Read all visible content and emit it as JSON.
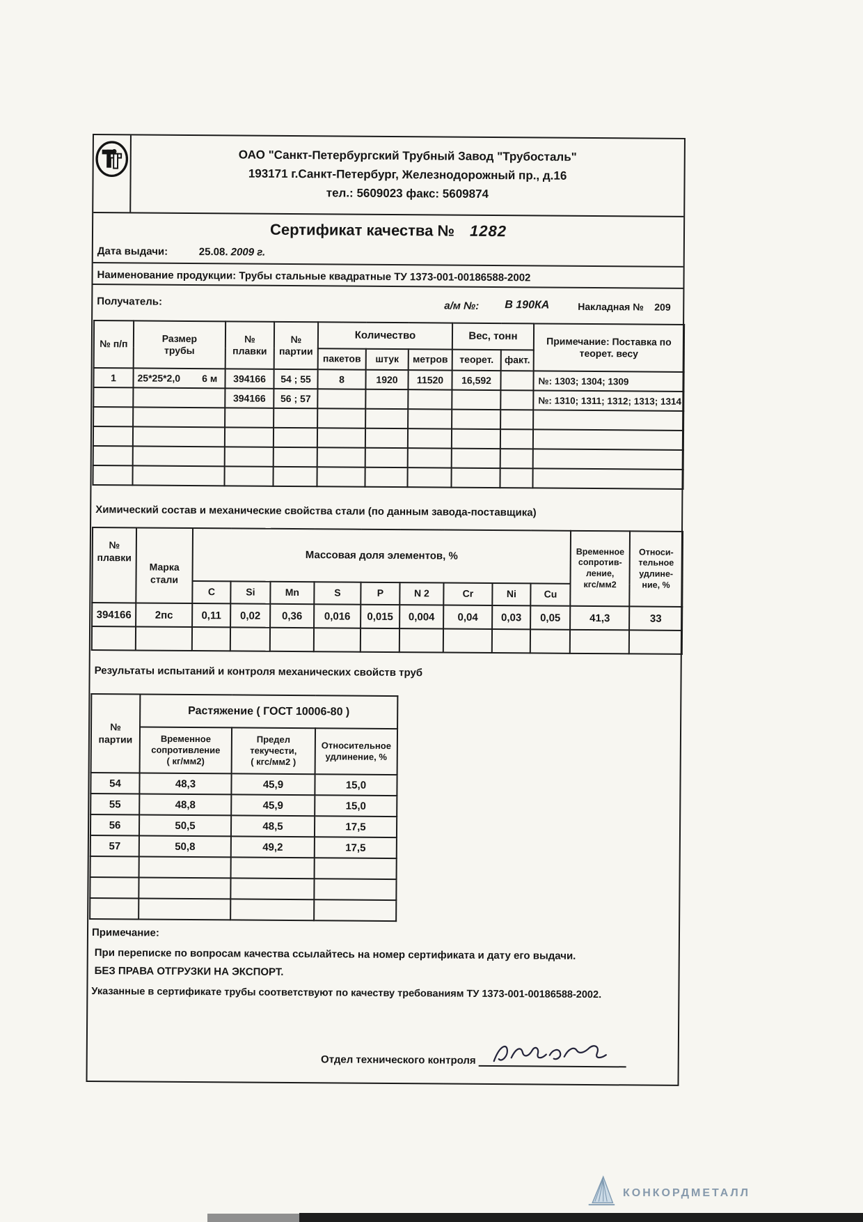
{
  "company": {
    "line1": "ОАО \"Санкт-Петербургский Трубный Завод \"Трубосталь\"",
    "line2": "193171  г.Санкт-Петербург, Железнодорожный пр., д.16",
    "line3": "тел.: 5609023   факс: 5609874"
  },
  "certificate": {
    "title_label": "Сертификат качества №",
    "number": "1282",
    "issue_label": "Дата выдачи:",
    "issue_date": "25.08.",
    "issue_year": "2009 г.",
    "product_line": "Наименование продукции: Трубы стальные квадратные ТУ 1373-001-00186588-2002",
    "recipient_label": "Получатель:",
    "vehicle_label": "а/м №:",
    "vehicle_value": "В 190КА",
    "invoice_label": "Накладная №",
    "invoice_value": "209"
  },
  "shipment_table": {
    "col_num": "№ п/п",
    "col_size": "Размер\nтрубы",
    "col_heat": "№\nплавки",
    "col_batch": "№\nпартии",
    "col_qty": "Количество",
    "col_packs": "пакетов",
    "col_pieces": "штук",
    "col_meters": "метров",
    "col_weight": "Вес, тонн",
    "col_theor": "теорет.",
    "col_fact": "факт.",
    "col_note": "Примечание: Поставка по\nтеорет. весу",
    "rows": [
      [
        "1",
        "25*25*2,0        6 м",
        "394166",
        "54 ; 55",
        "8",
        "1920",
        "11520",
        "16,592",
        "",
        "№: 1303; 1304; 1309"
      ],
      [
        "",
        "",
        "394166",
        "56 ; 57",
        "",
        "",
        "",
        "",
        "",
        "№: 1310; 1311; 1312; 1313; 1314"
      ],
      [
        "",
        "",
        "",
        "",
        "",
        "",
        "",
        "",
        "",
        ""
      ],
      [
        "",
        "",
        "",
        "",
        "",
        "",
        "",
        "",
        "",
        ""
      ],
      [
        "",
        "",
        "",
        "",
        "",
        "",
        "",
        "",
        "",
        ""
      ],
      [
        "",
        "",
        "",
        "",
        "",
        "",
        "",
        "",
        "",
        ""
      ]
    ]
  },
  "chemical_section": {
    "title": "Химический состав и механические свойства стали (по данным завода-поставщика)"
  },
  "chemical_table": {
    "col_heat": "№\nплавки",
    "col_grade": "Марка стали",
    "col_mass": "Массовая доля элементов, %",
    "elements": [
      "C",
      "Si",
      "Mn",
      "S",
      "P",
      "N 2",
      "Cr",
      "Ni",
      "Cu"
    ],
    "col_strength": "Временное\nсопротив-\nление,\nкгс/мм2",
    "col_elong": "Относи-\nтельное\nудлине-\nние, %",
    "rows": [
      [
        "394166",
        "2пс",
        "0,11",
        "0,02",
        "0,36",
        "0,016",
        "0,015",
        "0,004",
        "0,04",
        "0,03",
        "0,05",
        "41,3",
        "33"
      ],
      [
        "",
        "",
        "",
        "",
        "",
        "",
        "",
        "",
        "",
        "",
        "",
        "",
        ""
      ]
    ]
  },
  "test_section": {
    "title": "Результаты испытаний  и контроля механических свойств труб"
  },
  "test_table": {
    "col_batch": "№\nпартии",
    "col_group": "Растяжение   ( ГОСТ 10006-80 )",
    "col_strength": "Временное\nсопротивление\n( кг/мм2)",
    "col_yield": "Предел текучести,\n( кгс/мм2 )",
    "col_elong": "Относительное\nудлинение, %",
    "rows": [
      [
        "54",
        "48,3",
        "45,9",
        "15,0"
      ],
      [
        "55",
        "48,8",
        "45,9",
        "15,0"
      ],
      [
        "56",
        "50,5",
        "48,5",
        "17,5"
      ],
      [
        "57",
        "50,8",
        "49,2",
        "17,5"
      ],
      [
        "",
        "",
        "",
        ""
      ],
      [
        "",
        "",
        "",
        ""
      ],
      [
        "",
        "",
        "",
        ""
      ]
    ]
  },
  "notes": {
    "label": "Примечание:",
    "line1": "При переписке по вопросам качества ссылайтесь на номер сертификата и дату его выдачи.",
    "line2": "БЕЗ ПРАВА ОТГРУЗКИ НА ЭКСПОРТ.",
    "line3": "Указанные в сертификате трубы соответствуют по  качеству требованиям ТУ 1373-001-00186588-2002."
  },
  "signature": {
    "label": "Отдел технического контроля"
  },
  "watermark": {
    "text": "КОНКОРДМЕТАЛЛ"
  }
}
